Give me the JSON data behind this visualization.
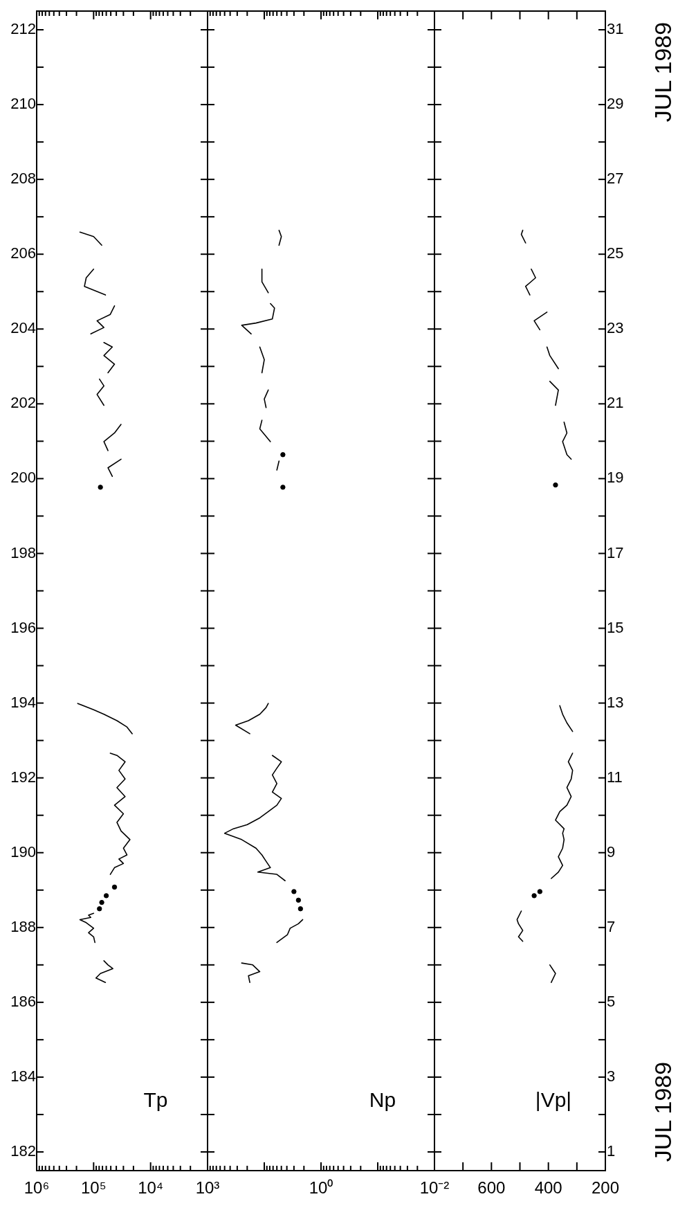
{
  "chart_data": [
    {
      "type": "line",
      "xlabel": "Tp",
      "log": "x",
      "series": [
        {
          "color": "#000000",
          "x": [
            62000,
            91000,
            76000,
            46000,
            56000,
            66000
          ],
          "values": [
            186.53,
            186.65,
            186.77,
            186.9,
            187.0,
            187.11
          ]
        },
        {
          "color": "#000000",
          "x": [
            95000,
            100000,
            123000,
            100000,
            135000,
            174000,
            112000,
            123000,
            100000
          ],
          "values": [
            187.6,
            187.75,
            187.86,
            187.98,
            188.13,
            188.21,
            188.27,
            188.33,
            188.38
          ]
        },
        {
          "type": "scatter",
          "color": "#000000",
          "x": [
            79000
          ],
          "values": [
            188.5
          ]
        },
        {
          "type": "scatter",
          "color": "#000000",
          "x": [
            72000
          ],
          "values": [
            188.67
          ]
        },
        {
          "type": "scatter",
          "color": "#000000",
          "x": [
            60000
          ],
          "values": [
            188.85
          ]
        },
        {
          "type": "scatter",
          "color": "#000000",
          "x": [
            43000
          ],
          "values": [
            189.08
          ]
        },
        {
          "color": "#000000",
          "x": [
            51000,
            43000,
            30000,
            36000,
            26000,
            30000,
            23000,
            30000,
            33000,
            39000,
            30000,
            43000,
            28000,
            39000,
            28000,
            36000,
            28000,
            39000,
            51000
          ],
          "values": [
            189.42,
            189.6,
            189.71,
            189.83,
            189.94,
            190.12,
            190.35,
            190.52,
            190.58,
            190.81,
            191.04,
            191.27,
            191.5,
            191.74,
            191.97,
            192.2,
            192.43,
            192.6,
            192.66
          ]
        },
        {
          "color": "#000000",
          "x": [
            21000,
            26000,
            39000,
            66000,
            100000,
            190000
          ],
          "values": [
            193.18,
            193.36,
            193.53,
            193.7,
            193.82,
            193.99
          ]
        },
        {
          "type": "scatter",
          "color": "#000000",
          "x": [
            76000
          ],
          "values": [
            199.77
          ]
        },
        {
          "color": "#000000",
          "x": [
            47000,
            56000,
            33000
          ],
          "values": [
            200.06,
            200.29,
            200.52
          ]
        },
        {
          "color": "#000000",
          "x": [
            56000,
            66000,
            43000,
            33000
          ],
          "values": [
            200.75,
            200.99,
            201.22,
            201.45
          ]
        },
        {
          "color": "#000000",
          "x": [
            66000,
            87000,
            66000,
            79000
          ],
          "values": [
            201.96,
            202.25,
            202.48,
            202.66
          ]
        },
        {
          "color": "#000000",
          "x": [
            56000,
            43000,
            66000,
            47000,
            66000
          ],
          "values": [
            202.83,
            203.06,
            203.29,
            203.52,
            203.64
          ]
        },
        {
          "color": "#000000",
          "x": [
            112000,
            66000,
            87000,
            51000,
            43000
          ],
          "values": [
            203.87,
            204.04,
            204.22,
            204.39,
            204.62
          ]
        },
        {
          "color": "#000000",
          "x": [
            62000,
            145000,
            135000,
            100000
          ],
          "values": [
            204.91,
            205.14,
            205.37,
            205.6
          ]
        },
        {
          "color": "#000000",
          "x": [
            72000,
            100000,
            174000
          ],
          "values": [
            206.24,
            206.47,
            206.59
          ]
        }
      ],
      "xlim": [
        1000000,
        1000
      ],
      "xticks": [
        {
          "value": 1000,
          "label": "10³"
        },
        {
          "value": 2000,
          "label": null
        },
        {
          "value": 3000,
          "label": null
        },
        {
          "value": 4000,
          "label": null
        },
        {
          "value": 5000,
          "label": null
        },
        {
          "value": 6000,
          "label": null
        },
        {
          "value": 7000,
          "label": null
        },
        {
          "value": 8000,
          "label": null
        },
        {
          "value": 9000,
          "label": null
        },
        {
          "value": 10000,
          "label": "10⁴"
        },
        {
          "value": 20000,
          "label": null
        },
        {
          "value": 30000,
          "label": null
        },
        {
          "value": 40000,
          "label": null
        },
        {
          "value": 50000,
          "label": null
        },
        {
          "value": 60000,
          "label": null
        },
        {
          "value": 70000,
          "label": null
        },
        {
          "value": 80000,
          "label": null
        },
        {
          "value": 90000,
          "label": null
        },
        {
          "value": 100000,
          "label": "10⁵"
        },
        {
          "value": 200000,
          "label": null
        },
        {
          "value": 300000,
          "label": null
        },
        {
          "value": 400000,
          "label": null
        },
        {
          "value": 500000,
          "label": null
        },
        {
          "value": 600000,
          "label": null
        },
        {
          "value": 700000,
          "label": null
        },
        {
          "value": 800000,
          "label": null
        },
        {
          "value": 900000,
          "label": null
        },
        {
          "value": 1000000,
          "label": "10⁶"
        }
      ],
      "ylim": [
        181.5,
        212.5
      ],
      "yticks": [
        182,
        {
          "value": 183,
          "label": null
        },
        184,
        {
          "value": 185,
          "label": null
        },
        186,
        {
          "value": 187,
          "label": null
        },
        188,
        {
          "value": 189,
          "label": null
        },
        190,
        {
          "value": 191,
          "label": null
        },
        192,
        {
          "value": 193,
          "label": null
        },
        194,
        {
          "value": 195,
          "label": null
        },
        196,
        {
          "value": 197,
          "label": null
        },
        198,
        {
          "value": 199,
          "label": null
        },
        200,
        {
          "value": 201,
          "label": null
        },
        202,
        {
          "value": 203,
          "label": null
        },
        204,
        {
          "value": 205,
          "label": null
        },
        206,
        {
          "value": 207,
          "label": null
        },
        208,
        {
          "value": 209,
          "label": null
        },
        210,
        {
          "value": 211,
          "label": null
        },
        212
      ]
    },
    {
      "type": "line",
      "xlabel": "Np",
      "log": "x",
      "tick_labels": "x",
      "series": [
        {
          "color": "#000000",
          "x": [
            18,
            19,
            12,
            16,
            25
          ],
          "values": [
            186.53,
            186.71,
            186.82,
            187.0,
            187.05
          ]
        },
        {
          "color": "#000000",
          "x": [
            6.0,
            3.9,
            3.5,
            2.5,
            2.1
          ],
          "values": [
            187.6,
            187.81,
            187.98,
            188.1,
            188.21
          ]
        },
        {
          "type": "scatter",
          "color": "#000000",
          "x": [
            2.3
          ],
          "values": [
            188.5
          ]
        },
        {
          "type": "scatter",
          "color": "#000000",
          "x": [
            2.5
          ],
          "values": [
            188.73
          ]
        },
        {
          "type": "scatter",
          "color": "#000000",
          "x": [
            3.0
          ],
          "values": [
            188.96
          ]
        },
        {
          "color": "#000000",
          "x": [
            4.3,
            6.0,
            13,
            7.8,
            9.3,
            11,
            14,
            25,
            50,
            35,
            20,
            12,
            8.5,
            6.0,
            5.0,
            7.2,
            6.0,
            7.2,
            6.0,
            5.0,
            7.2
          ],
          "values": [
            189.25,
            189.42,
            189.48,
            189.6,
            189.77,
            189.94,
            190.12,
            190.35,
            190.52,
            190.64,
            190.75,
            190.93,
            191.1,
            191.27,
            191.45,
            191.62,
            191.85,
            192.08,
            192.26,
            192.43,
            192.6
          ]
        },
        {
          "color": "#000000",
          "x": [
            18,
            32,
            19,
            12,
            9.3,
            8.5
          ],
          "values": [
            193.18,
            193.41,
            193.53,
            193.7,
            193.88,
            193.99
          ]
        },
        {
          "type": "scatter",
          "color": "#000000",
          "x": [
            4.7
          ],
          "values": [
            199.77
          ]
        },
        {
          "color": "#000000",
          "x": [
            6.0,
            5.5
          ],
          "values": [
            200.23,
            200.47
          ]
        },
        {
          "type": "scatter",
          "color": "#000000",
          "x": [
            4.7
          ],
          "values": [
            200.64
          ]
        },
        {
          "color": "#000000",
          "x": [
            7.8,
            12,
            11
          ],
          "values": [
            200.99,
            201.33,
            201.56
          ]
        },
        {
          "color": "#000000",
          "x": [
            9.3,
            10,
            8.5
          ],
          "values": [
            201.9,
            202.13,
            202.37
          ]
        },
        {
          "color": "#000000",
          "x": [
            11,
            10,
            12
          ],
          "values": [
            202.83,
            203.18,
            203.52
          ]
        },
        {
          "color": "#000000",
          "x": [
            17,
            25,
            14,
            7.2,
            6.6,
            7.8
          ],
          "values": [
            203.87,
            204.1,
            204.16,
            204.27,
            204.56,
            204.68
          ]
        },
        {
          "color": "#000000",
          "x": [
            8.5,
            11,
            11
          ],
          "values": [
            204.97,
            205.26,
            205.6
          ]
        },
        {
          "color": "#000000",
          "x": [
            5.5,
            5.0,
            5.5
          ],
          "values": [
            206.24,
            206.47,
            206.64
          ]
        }
      ],
      "xlim": [
        100,
        0.01
      ],
      "xticks": [
        {
          "value": 0.01,
          "label": "10⁻²"
        },
        {
          "value": 0.02,
          "label": null
        },
        {
          "value": 0.03,
          "label": null
        },
        {
          "value": 0.04,
          "label": null
        },
        {
          "value": 0.05,
          "label": null
        },
        {
          "value": 0.06,
          "label": null
        },
        {
          "value": 0.07,
          "label": null
        },
        {
          "value": 0.08,
          "label": null
        },
        {
          "value": 0.09,
          "label": null
        },
        {
          "value": 0.1,
          "label": null
        },
        {
          "value": 0.2,
          "label": null
        },
        {
          "value": 0.3,
          "label": null
        },
        {
          "value": 0.4,
          "label": null
        },
        {
          "value": 0.5,
          "label": null
        },
        {
          "value": 0.6,
          "label": null
        },
        {
          "value": 0.7,
          "label": null
        },
        {
          "value": 0.8,
          "label": null
        },
        {
          "value": 0.9,
          "label": null
        },
        {
          "value": 1,
          "label": "10⁰"
        },
        {
          "value": 2,
          "label": null
        },
        {
          "value": 3,
          "label": null
        },
        {
          "value": 4,
          "label": null
        },
        {
          "value": 5,
          "label": null
        },
        {
          "value": 6,
          "label": null
        },
        {
          "value": 7,
          "label": null
        },
        {
          "value": 8,
          "label": null
        },
        {
          "value": 9,
          "label": null
        },
        {
          "value": 10,
          "label": null
        },
        {
          "value": 20,
          "label": null
        },
        {
          "value": 30,
          "label": null
        },
        {
          "value": 40,
          "label": null
        },
        {
          "value": 50,
          "label": null
        },
        {
          "value": 60,
          "label": null
        },
        {
          "value": 70,
          "label": null
        },
        {
          "value": 80,
          "label": null
        },
        {
          "value": 90,
          "label": null
        },
        {
          "value": 100,
          "label": null
        }
      ],
      "ylim": [
        181.5,
        212.5
      ],
      "yticks": [
        {
          "value": 182,
          "label": null
        },
        {
          "value": 183,
          "label": null
        },
        {
          "value": 184,
          "label": null
        },
        {
          "value": 185,
          "label": null
        },
        {
          "value": 186,
          "label": null
        },
        {
          "value": 187,
          "label": null
        },
        {
          "value": 188,
          "label": null
        },
        {
          "value": 189,
          "label": null
        },
        {
          "value": 190,
          "label": null
        },
        {
          "value": 191,
          "label": null
        },
        {
          "value": 192,
          "label": null
        },
        {
          "value": 193,
          "label": null
        },
        {
          "value": 194,
          "label": null
        },
        {
          "value": 195,
          "label": null
        },
        {
          "value": 196,
          "label": null
        },
        {
          "value": 197,
          "label": null
        },
        {
          "value": 198,
          "label": null
        },
        {
          "value": 199,
          "label": null
        },
        {
          "value": 200,
          "label": null
        },
        {
          "value": 201,
          "label": null
        },
        {
          "value": 202,
          "label": null
        },
        {
          "value": 203,
          "label": null
        },
        {
          "value": 204,
          "label": null
        },
        {
          "value": 205,
          "label": null
        },
        {
          "value": 206,
          "label": null
        },
        {
          "value": 207,
          "label": null
        },
        {
          "value": 208,
          "label": null
        },
        {
          "value": 209,
          "label": null
        },
        {
          "value": 210,
          "label": null
        },
        {
          "value": 211,
          "label": null
        },
        {
          "value": 212,
          "label": null
        }
      ]
    },
    {
      "type": "line",
      "xlabel": "|Vp|",
      "y2label": "JUL 1989",
      "annotations": [
        "JUL 1989"
      ],
      "series": [
        {
          "axis": "y2",
          "color": "#000000",
          "x": [
            390,
            375,
            395
          ],
          "values": [
            5.53,
            5.77,
            6.0
          ]
        },
        {
          "axis": "y2",
          "color": "#000000",
          "x": [
            490,
            505,
            490,
            505,
            510,
            495
          ],
          "values": [
            6.63,
            6.75,
            6.92,
            7.1,
            7.21,
            7.44
          ]
        },
        {
          "axis": "y2",
          "type": "scatter",
          "color": "#000000",
          "x": [
            450
          ],
          "values": [
            7.85
          ]
        },
        {
          "axis": "y2",
          "type": "scatter",
          "color": "#000000",
          "x": [
            430
          ],
          "values": [
            7.96
          ]
        },
        {
          "axis": "y2",
          "color": "#000000",
          "x": [
            390,
            365,
            350,
            365,
            350,
            345,
            350,
            345,
            375,
            360,
            335,
            320,
            335,
            320,
            315,
            330,
            315
          ],
          "values": [
            8.31,
            8.48,
            8.66,
            8.89,
            9.12,
            9.35,
            9.52,
            9.64,
            9.87,
            10.1,
            10.27,
            10.5,
            10.74,
            10.97,
            11.2,
            11.43,
            11.66
          ]
        },
        {
          "axis": "y2",
          "color": "#000000",
          "x": [
            315,
            335,
            350,
            360
          ],
          "values": [
            12.24,
            12.47,
            12.7,
            12.93
          ]
        },
        {
          "axis": "y2",
          "type": "scatter",
          "color": "#000000",
          "x": [
            375
          ],
          "values": [
            18.83
          ]
        },
        {
          "axis": "y2",
          "color": "#000000",
          "x": [
            320,
            335,
            350,
            335,
            345
          ],
          "values": [
            19.52,
            19.64,
            19.99,
            20.22,
            20.51
          ]
        },
        {
          "axis": "y2",
          "color": "#000000",
          "x": [
            375,
            365,
            395
          ],
          "values": [
            20.96,
            21.37,
            21.6
          ]
        },
        {
          "axis": "y2",
          "color": "#000000",
          "x": [
            365,
            395,
            405
          ],
          "values": [
            21.94,
            22.29,
            22.52
          ]
        },
        {
          "axis": "y2",
          "color": "#000000",
          "x": [
            430,
            450,
            405
          ],
          "values": [
            22.98,
            23.22,
            23.45
          ]
        },
        {
          "axis": "y2",
          "color": "#000000",
          "x": [
            465,
            480,
            445,
            460
          ],
          "values": [
            23.91,
            24.14,
            24.37,
            24.6
          ]
        },
        {
          "axis": "y2",
          "color": "#000000",
          "x": [
            480,
            495,
            490
          ],
          "values": [
            25.3,
            25.53,
            25.64
          ]
        }
      ],
      "xlim": [
        800,
        200
      ],
      "xticks": [
        200,
        {
          "value": 300,
          "label": null
        },
        400,
        {
          "value": 500,
          "label": null
        },
        600,
        {
          "value": 700,
          "label": null
        }
      ],
      "y2lim": [
        0.5,
        31.5
      ],
      "y2ticks": [
        1,
        {
          "value": 2,
          "label": null
        },
        3,
        {
          "value": 4,
          "label": null
        },
        5,
        {
          "value": 6,
          "label": null
        },
        7,
        {
          "value": 8,
          "label": null
        },
        9,
        {
          "value": 10,
          "label": null
        },
        11,
        {
          "value": 12,
          "label": null
        },
        13,
        {
          "value": 14,
          "label": null
        },
        15,
        {
          "value": 16,
          "label": null
        },
        17,
        {
          "value": 18,
          "label": null
        },
        19,
        {
          "value": 20,
          "label": null
        },
        21,
        {
          "value": 22,
          "label": null
        },
        23,
        {
          "value": 24,
          "label": null
        },
        25,
        {
          "value": 26,
          "label": null
        },
        27,
        {
          "value": 28,
          "label": null
        },
        29,
        {
          "value": 30,
          "label": null
        },
        31
      ]
    }
  ]
}
